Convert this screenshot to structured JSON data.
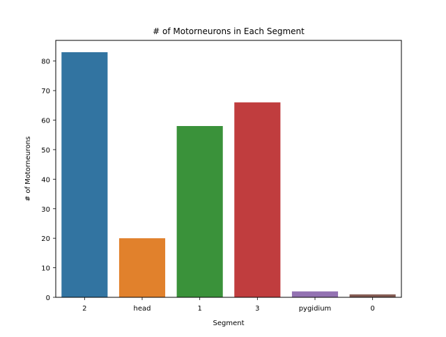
{
  "chart_data": {
    "type": "bar",
    "title": "# of Motorneurons in Each Segment",
    "xlabel": "Segment",
    "ylabel": "# of Motorneurons",
    "categories": [
      "2",
      "head",
      "1",
      "3",
      "pygidium",
      "0"
    ],
    "values": [
      83,
      20,
      58,
      66,
      2,
      1
    ],
    "colors": [
      "#3274a1",
      "#e1812c",
      "#3a923a",
      "#c03d3e",
      "#9372b2",
      "#845b53"
    ],
    "ylim": [
      0,
      87
    ],
    "yticks": [
      0,
      10,
      20,
      30,
      40,
      50,
      60,
      70,
      80
    ],
    "grid": false,
    "legend": "none"
  }
}
